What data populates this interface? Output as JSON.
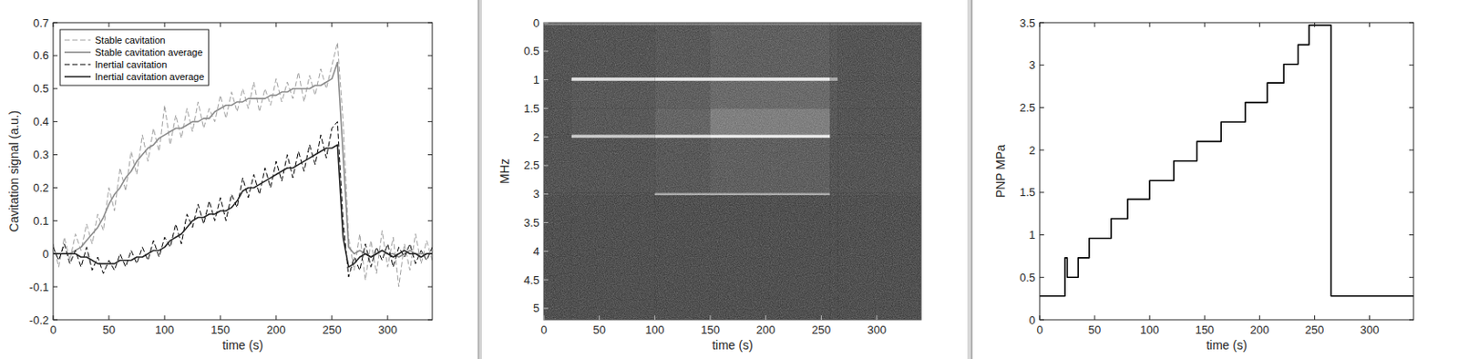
{
  "chart_data": [
    {
      "type": "line",
      "x_label": "time (s)",
      "y_label": "Cavitation signal (a.u.)",
      "x": [
        0,
        5,
        10,
        15,
        20,
        25,
        30,
        35,
        40,
        45,
        50,
        55,
        60,
        65,
        70,
        75,
        80,
        85,
        90,
        95,
        100,
        105,
        110,
        115,
        120,
        125,
        130,
        135,
        140,
        145,
        150,
        155,
        160,
        165,
        170,
        175,
        180,
        185,
        190,
        195,
        200,
        205,
        210,
        215,
        220,
        225,
        230,
        235,
        240,
        245,
        250,
        255,
        260,
        265,
        270,
        275,
        280,
        285,
        290,
        295,
        300,
        305,
        310,
        315,
        320,
        325,
        330,
        335,
        340
      ],
      "xlim": [
        0,
        340
      ],
      "xticks": [
        0,
        50,
        100,
        150,
        200,
        250,
        300
      ],
      "ylim": [
        -0.2,
        0.7
      ],
      "yticks": [
        -0.2,
        -0.1,
        0,
        0.1,
        0.2,
        0.3,
        0.4,
        0.5,
        0.6,
        0.7
      ],
      "legend": "northwest",
      "series": [
        {
          "name": "Stable cavitation",
          "color": "#a0a0a0",
          "line_style": "dashed",
          "values": [
            0.03,
            -0.04,
            0.05,
            -0.02,
            0.06,
            0.01,
            0.09,
            0.03,
            0.12,
            0.07,
            0.2,
            0.13,
            0.26,
            0.19,
            0.31,
            0.24,
            0.36,
            0.28,
            0.38,
            0.31,
            0.45,
            0.33,
            0.42,
            0.35,
            0.44,
            0.37,
            0.46,
            0.38,
            0.44,
            0.4,
            0.48,
            0.41,
            0.49,
            0.43,
            0.5,
            0.44,
            0.52,
            0.43,
            0.5,
            0.45,
            0.53,
            0.46,
            0.52,
            0.47,
            0.55,
            0.46,
            0.54,
            0.48,
            0.56,
            0.5,
            0.57,
            0.64,
            0.4,
            0.05,
            -0.05,
            0.06,
            -0.08,
            0.04,
            -0.06,
            0.07,
            -0.04,
            0.05,
            -0.1,
            0.03,
            -0.05,
            0.06,
            -0.03,
            0.04,
            -0.02
          ]
        },
        {
          "name": "Stable cavitation average",
          "color": "#8c8c8c",
          "line_style": "solid",
          "values": [
            0,
            0,
            0,
            0,
            0.01,
            0.02,
            0.04,
            0.06,
            0.08,
            0.11,
            0.15,
            0.18,
            0.2,
            0.23,
            0.25,
            0.28,
            0.3,
            0.32,
            0.33,
            0.35,
            0.36,
            0.37,
            0.38,
            0.38,
            0.39,
            0.4,
            0.4,
            0.41,
            0.41,
            0.43,
            0.44,
            0.45,
            0.45,
            0.46,
            0.46,
            0.47,
            0.47,
            0.47,
            0.47,
            0.48,
            0.48,
            0.49,
            0.49,
            0.5,
            0.5,
            0.5,
            0.5,
            0.51,
            0.51,
            0.52,
            0.53,
            0.58,
            0.3,
            0.02,
            0,
            0.01,
            0,
            -0.01,
            0,
            0.01,
            0,
            0,
            -0.01,
            0,
            0.01,
            0,
            0,
            0,
            0
          ]
        },
        {
          "name": "Inertial cavitation",
          "color": "#000000",
          "line_style": "dashed",
          "values": [
            0.02,
            -0.02,
            0.03,
            -0.03,
            0.01,
            -0.04,
            0.02,
            -0.05,
            -0.01,
            -0.06,
            -0.02,
            -0.05,
            0,
            -0.04,
            0.01,
            -0.03,
            0.02,
            -0.02,
            0.04,
            -0.01,
            0.05,
            0.02,
            0.09,
            0.03,
            0.12,
            0.08,
            0.15,
            0.09,
            0.16,
            0.1,
            0.17,
            0.1,
            0.18,
            0.14,
            0.23,
            0.17,
            0.24,
            0.18,
            0.26,
            0.2,
            0.28,
            0.22,
            0.3,
            0.23,
            0.31,
            0.25,
            0.33,
            0.27,
            0.36,
            0.29,
            0.38,
            0.4,
            0.1,
            -0.07,
            -0.01,
            -0.05,
            0.03,
            -0.04,
            0.02,
            -0.02,
            0.03,
            -0.04,
            0.02,
            -0.01,
            0.03,
            -0.03,
            0.01,
            -0.02,
            0.02
          ]
        },
        {
          "name": "Inertial cavitation average",
          "color": "#262626",
          "line_style": "solid",
          "values": [
            0,
            0,
            0,
            0,
            0,
            -0.01,
            -0.01,
            -0.02,
            -0.03,
            -0.03,
            -0.03,
            -0.03,
            -0.02,
            -0.02,
            -0.02,
            -0.01,
            -0.01,
            0,
            0.01,
            0.01,
            0.02,
            0.04,
            0.05,
            0.06,
            0.08,
            0.1,
            0.11,
            0.11,
            0.12,
            0.12,
            0.13,
            0.13,
            0.14,
            0.16,
            0.19,
            0.2,
            0.2,
            0.21,
            0.22,
            0.23,
            0.24,
            0.25,
            0.26,
            0.26,
            0.27,
            0.28,
            0.29,
            0.3,
            0.31,
            0.32,
            0.32,
            0.33,
            0.05,
            -0.04,
            -0.03,
            -0.01,
            0,
            -0.01,
            0,
            0.01,
            0,
            -0.01,
            0,
            0.01,
            0,
            0,
            -0.01,
            0,
            0
          ]
        }
      ]
    },
    {
      "type": "heatmap",
      "x_label": "time (s)",
      "y_label": "MHz",
      "x_edges": [
        0,
        25,
        100,
        150,
        258,
        265,
        340
      ],
      "y_edges": [
        0,
        0.05,
        0.96,
        1.02,
        1.5,
        1.96,
        2.02,
        2.98,
        3.02,
        5.2
      ],
      "cells": [
        [
          0.4,
          0.4,
          0.4,
          0.4,
          0.4,
          0.4
        ],
        [
          0.2,
          0.2,
          0.22,
          0.25,
          0.22,
          0.2
        ],
        [
          0.2,
          0.85,
          0.9,
          0.9,
          0.6,
          0.2
        ],
        [
          0.2,
          0.22,
          0.25,
          0.3,
          0.22,
          0.2
        ],
        [
          0.2,
          0.22,
          0.28,
          0.4,
          0.22,
          0.2
        ],
        [
          0.2,
          0.75,
          0.85,
          0.9,
          0.22,
          0.2
        ],
        [
          0.2,
          0.2,
          0.22,
          0.25,
          0.2,
          0.2
        ],
        [
          0.2,
          0.2,
          0.6,
          0.6,
          0.2,
          0.2
        ],
        [
          0.18,
          0.18,
          0.18,
          0.18,
          0.18,
          0.18
        ]
      ],
      "zlim": [
        0,
        1
      ],
      "xlim": [
        0,
        340
      ],
      "xticks": [
        0,
        50,
        100,
        150,
        200,
        250,
        300
      ],
      "ylim": [
        5.2,
        0
      ],
      "yticks": [
        0,
        0.5,
        1,
        1.5,
        2,
        2.5,
        3,
        3.5,
        4,
        4.5,
        5
      ]
    },
    {
      "type": "line",
      "x_label": "time (s)",
      "y_label": "PNP MPa",
      "line_style": "step",
      "color": "#000000",
      "x": [
        0,
        23,
        25,
        35,
        45,
        65,
        80,
        100,
        122,
        143,
        165,
        187,
        207,
        222,
        235,
        245,
        265,
        340
      ],
      "values": [
        0.28,
        0.73,
        0.5,
        0.73,
        0.96,
        1.19,
        1.42,
        1.64,
        1.87,
        2.1,
        2.33,
        2.56,
        2.79,
        3.01,
        3.24,
        3.47,
        0.28,
        0.28
      ],
      "xlim": [
        0,
        340
      ],
      "xticks": [
        0,
        50,
        100,
        150,
        200,
        250,
        300
      ],
      "ylim": [
        0,
        3.5
      ],
      "yticks": [
        0,
        0.5,
        1,
        1.5,
        2,
        2.5,
        3,
        3.5
      ]
    }
  ]
}
